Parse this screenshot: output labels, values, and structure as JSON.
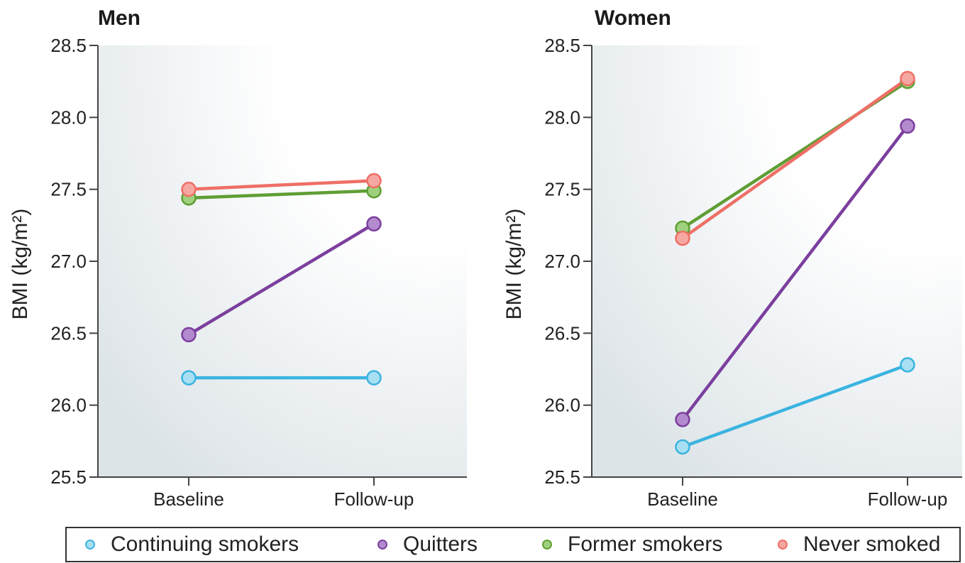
{
  "chart_data": [
    {
      "type": "line",
      "title": "Men",
      "xlabel": "",
      "ylabel": "BMI (kg/m²)",
      "categories": [
        "Baseline",
        "Follow-up"
      ],
      "ylim": [
        25.5,
        28.5
      ],
      "yticks": [
        "25.5",
        "26.0",
        "26.5",
        "27.0",
        "27.5",
        "28.0",
        "28.5"
      ],
      "grid": false,
      "series": [
        {
          "name": "Continuing smokers",
          "values": [
            26.19,
            26.19
          ]
        },
        {
          "name": "Quitters",
          "values": [
            26.49,
            27.26
          ]
        },
        {
          "name": "Former smokers",
          "values": [
            27.44,
            27.49
          ]
        },
        {
          "name": "Never smoked",
          "values": [
            27.5,
            27.56
          ]
        }
      ]
    },
    {
      "type": "line",
      "title": "Women",
      "xlabel": "",
      "ylabel": "BMI (kg/m²)",
      "categories": [
        "Baseline",
        "Follow-up"
      ],
      "ylim": [
        25.5,
        28.5
      ],
      "yticks": [
        "25.5",
        "26.0",
        "26.5",
        "27.0",
        "27.5",
        "28.0",
        "28.5"
      ],
      "grid": false,
      "series": [
        {
          "name": "Continuing smokers",
          "values": [
            25.71,
            26.28
          ]
        },
        {
          "name": "Quitters",
          "values": [
            25.9,
            27.94
          ]
        },
        {
          "name": "Former smokers",
          "values": [
            27.23,
            28.25
          ]
        },
        {
          "name": "Never smoked",
          "values": [
            27.16,
            28.27
          ]
        }
      ]
    }
  ],
  "colors": {
    "Continuing smokers": {
      "line": "#3ab4e0",
      "fill": "#a9dff2"
    },
    "Quitters": {
      "line": "#7b3f9e",
      "fill": "#b38acd"
    },
    "Former smokers": {
      "line": "#5f9e34",
      "fill": "#9fd07d"
    },
    "Never smoked": {
      "line": "#ee6f66",
      "fill": "#f5a8a1"
    }
  },
  "legend": {
    "placement": "bottom",
    "items": [
      "Continuing smokers",
      "Quitters",
      "Former smokers",
      "Never smoked"
    ]
  }
}
